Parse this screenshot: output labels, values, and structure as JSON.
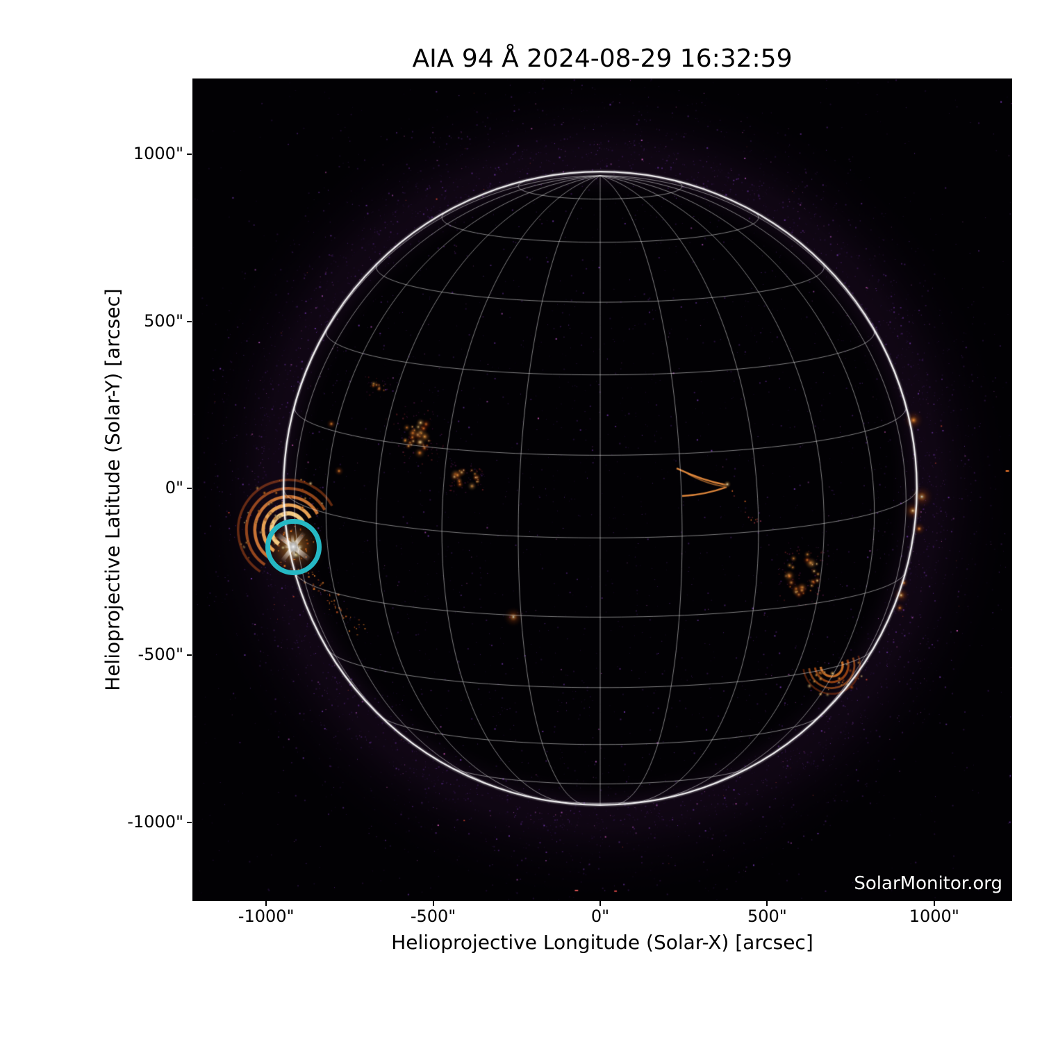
{
  "watermark": "SolarMonitor.org",
  "chart_data": {
    "type": "heatmap",
    "title": "AIA 94 Å 2024-08-29 16:32:59",
    "instrument": "AIA",
    "wavelength": "94 Å",
    "observed_time": "2024-08-29 16:32:59",
    "xlabel": "Helioprojective Longitude (Solar-X) [arcsec]",
    "ylabel": "Helioprojective Latitude (Solar-Y) [arcsec]",
    "xlim": [
      -1221,
      1233
    ],
    "ylim": [
      -1235,
      1227
    ],
    "x_ticks": [
      {
        "v": -1000,
        "label": "-1000\""
      },
      {
        "v": -500,
        "label": "-500\""
      },
      {
        "v": 0,
        "label": "0\""
      },
      {
        "v": 500,
        "label": "500\""
      },
      {
        "v": 1000,
        "label": "1000\""
      }
    ],
    "y_ticks": [
      {
        "v": 1000,
        "label": "1000\""
      },
      {
        "v": 500,
        "label": "500\""
      },
      {
        "v": 0,
        "label": "0\""
      },
      {
        "v": -500,
        "label": "-500\""
      },
      {
        "v": -1000,
        "label": "-1000\""
      }
    ],
    "background_color": "#020104",
    "colormap": "sdoaia94 (black-purple-orange-white)",
    "grid": {
      "spacing_deg": 15,
      "b0_deg": 9,
      "line_color": "#ffffff",
      "line_opacity": 0.5
    },
    "solar_limb": {
      "center_arcsec": [
        0,
        0
      ],
      "radius_arcsec": 948,
      "color": "#ffffff"
    },
    "noise": {
      "description": "sparse purple speckles, denser ring just outside limb",
      "seed": 1234
    },
    "palette": {
      "hot": [
        "#ffd890",
        "#ffb050",
        "#ff8c2e",
        "#e85c14",
        "#b82e08",
        "#7a1430"
      ],
      "noise": [
        "#231038",
        "#34164e",
        "#4b2270",
        "#6a34a0",
        "#95479f",
        "#cf58b8"
      ]
    },
    "annotation": {
      "shape": "circle",
      "x": -919,
      "y": -175,
      "radius_arcsec": 77,
      "color": "#26b8c4",
      "stroke_px": 7,
      "meaning": "flaring active region marker"
    },
    "features": [
      {
        "id": "flare-east-limb",
        "kind": "flare",
        "x": -919,
        "y": -175,
        "seed": 5,
        "label": "bright flare, saturated core"
      },
      {
        "id": "postflare-loops",
        "kind": "arcade",
        "x": -934,
        "y": -125,
        "angle": -20,
        "radii": [
          50,
          75,
          100,
          125,
          150
        ],
        "seed": 7,
        "label": "post-flare loop arcade"
      },
      {
        "id": "flare-south-trail",
        "kind": "trail",
        "x": -905,
        "y": -235,
        "x2": -715,
        "y2": -425,
        "n": 55,
        "seed": 11
      },
      {
        "id": "ar-east-a",
        "kind": "cluster",
        "x": -549,
        "y": 162,
        "w": 95,
        "h": 135,
        "angle": -20,
        "n": 30,
        "seed": 21,
        "intensity": 1.0
      },
      {
        "id": "ar-east-a-ext",
        "kind": "cluster",
        "x": -663,
        "y": 308,
        "w": 55,
        "h": 40,
        "angle": 0,
        "n": 8,
        "seed": 22,
        "intensity": 0.6
      },
      {
        "id": "ar-east-b",
        "kind": "cluster",
        "x": -399,
        "y": 31,
        "w": 75,
        "h": 62,
        "angle": 10,
        "n": 18,
        "seed": 23,
        "ring": true,
        "intensity": 0.9
      },
      {
        "id": "bright-point-south",
        "kind": "point",
        "x": -260,
        "y": -385,
        "r": 6,
        "intensity": 1.2
      },
      {
        "id": "ar-west-vloops",
        "kind": "vloops",
        "x": 366,
        "y": 6,
        "seed": 31
      },
      {
        "id": "ar-west-b",
        "kind": "cluster",
        "x": 605,
        "y": -254,
        "w": 95,
        "h": 125,
        "angle": 8,
        "n": 30,
        "seed": 32,
        "ring": true,
        "intensity": 1.0
      },
      {
        "id": "ar-southwest-arcs",
        "kind": "arcs",
        "x": 693,
        "y": -530,
        "angle": 25,
        "radii": [
          33,
          50,
          68,
          85
        ],
        "n": 24,
        "seed": 33
      },
      {
        "id": "limb-west-1",
        "kind": "point",
        "x": 963,
        "y": -25,
        "r": 7,
        "intensity": 1.1
      },
      {
        "id": "limb-west-2",
        "kind": "point",
        "x": 936,
        "y": -67,
        "r": 6,
        "intensity": 0.9
      },
      {
        "id": "limb-west-3",
        "kind": "point",
        "x": 955,
        "y": -121,
        "r": 4,
        "intensity": 0.7
      },
      {
        "id": "limb-west-4",
        "kind": "point",
        "x": 909,
        "y": -283,
        "r": 3,
        "intensity": 0.6
      },
      {
        "id": "limb-west-5",
        "kind": "point",
        "x": 901,
        "y": -320,
        "r": 5,
        "intensity": 1.0
      },
      {
        "id": "limb-west-6",
        "kind": "point",
        "x": 897,
        "y": -358,
        "r": 3,
        "intensity": 0.6
      },
      {
        "id": "limb-northwest",
        "kind": "point",
        "x": 938,
        "y": 204,
        "r": 6,
        "intensity": 0.5
      },
      {
        "id": "dot-east-1",
        "kind": "point",
        "x": -805,
        "y": 193,
        "r": 3,
        "intensity": 0.8
      },
      {
        "id": "dot-east-2",
        "kind": "point",
        "x": -782,
        "y": 52,
        "r": 3,
        "intensity": 0.7
      },
      {
        "id": "dash-west-edge",
        "kind": "dash",
        "x": 1219,
        "y": 52,
        "w": 10,
        "h": 4,
        "color": "#ff8030"
      },
      {
        "id": "speck-south-1",
        "kind": "dash",
        "x": -71,
        "y": -1204,
        "w": 10,
        "h": 4,
        "color": "#e05858"
      },
      {
        "id": "speck-south-2",
        "kind": "dash",
        "x": 46,
        "y": -1206,
        "w": 8,
        "h": 4,
        "color": "#d84848"
      }
    ]
  }
}
